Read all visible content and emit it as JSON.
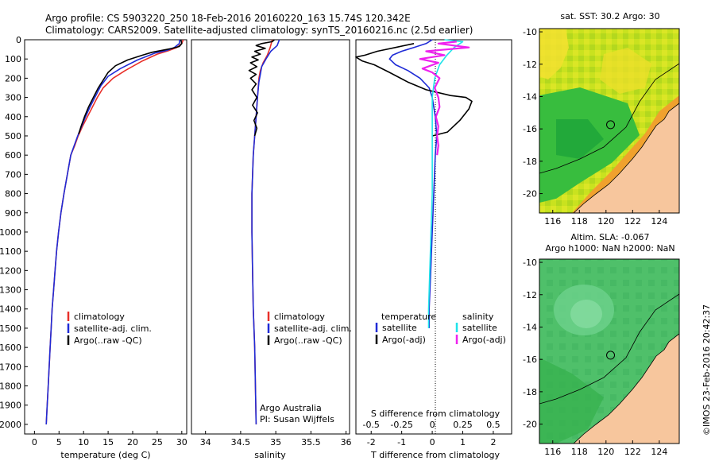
{
  "header": {
    "line1": "Argo profile: CS 5903220_250 18-Feb-2016 20160220_163 15.74S 120.342E",
    "line2": "Climatology: CARS2009. Satellite-adjusted climatology: synTS_20160216.nc (2.5d earlier)"
  },
  "colors": {
    "climatology": "#e8302a",
    "satellite": "#1f2bd6",
    "argo": "#000000",
    "sal_satellite": "#1fe3ea",
    "sal_argo": "#ee22ee",
    "land": "#f7c69d"
  },
  "depth_axis": {
    "ylim": [
      0,
      2050
    ],
    "ticks": [
      "0",
      "100",
      "200",
      "300",
      "400",
      "500",
      "600",
      "700",
      "800",
      "900",
      "1000",
      "1100",
      "1200",
      "1300",
      "1400",
      "1500",
      "1600",
      "1700",
      "1800",
      "1900",
      "2000"
    ]
  },
  "chart_data": [
    {
      "type": "line",
      "id": "temperature",
      "xlabel": "temperature (deg C)",
      "xlim": [
        -2,
        31
      ],
      "xticks": [
        "0",
        "5",
        "10",
        "15",
        "20",
        "25",
        "30"
      ],
      "legend": [
        "climatology",
        "satellite-adj. clim.",
        "Argo(..raw -QC)"
      ],
      "series": [
        {
          "name": "climatology",
          "color": "#e8302a",
          "points": [
            [
              30.3,
              0
            ],
            [
              30.0,
              20
            ],
            [
              29.0,
              40
            ],
            [
              27.5,
              55
            ],
            [
              25.0,
              75
            ],
            [
              22.0,
              110
            ],
            [
              18.5,
              160
            ],
            [
              16.0,
              200
            ],
            [
              14.0,
              250
            ],
            [
              12.8,
              300
            ],
            [
              11.8,
              350
            ],
            [
              10.8,
              400
            ],
            [
              9.8,
              450
            ],
            [
              8.9,
              500
            ],
            [
              8.2,
              550
            ],
            [
              7.4,
              600
            ],
            [
              6.7,
              700
            ],
            [
              6.0,
              800
            ],
            [
              5.4,
              900
            ],
            [
              4.9,
              1000
            ],
            [
              4.5,
              1100
            ],
            [
              4.2,
              1200
            ],
            [
              3.9,
              1300
            ],
            [
              3.6,
              1400
            ],
            [
              3.4,
              1500
            ],
            [
              3.2,
              1600
            ],
            [
              3.0,
              1700
            ],
            [
              2.8,
              1800
            ],
            [
              2.6,
              1900
            ],
            [
              2.4,
              2000
            ]
          ]
        },
        {
          "name": "satellite-adj. clim.",
          "color": "#1f2bd6",
          "points": [
            [
              29.6,
              0
            ],
            [
              29.5,
              20
            ],
            [
              28.5,
              40
            ],
            [
              27.0,
              55
            ],
            [
              24.5,
              70
            ],
            [
              21.0,
              105
            ],
            [
              17.5,
              150
            ],
            [
              15.0,
              190
            ],
            [
              13.5,
              240
            ],
            [
              12.3,
              300
            ],
            [
              11.3,
              350
            ],
            [
              10.4,
              400
            ],
            [
              9.6,
              450
            ],
            [
              8.8,
              500
            ],
            [
              8.1,
              550
            ],
            [
              7.4,
              600
            ],
            [
              6.7,
              700
            ],
            [
              6.0,
              800
            ],
            [
              5.4,
              900
            ],
            [
              4.9,
              1000
            ],
            [
              4.5,
              1100
            ],
            [
              4.2,
              1200
            ],
            [
              3.9,
              1300
            ],
            [
              3.6,
              1400
            ],
            [
              3.4,
              1500
            ],
            [
              3.2,
              1600
            ],
            [
              3.0,
              1700
            ],
            [
              2.8,
              1800
            ],
            [
              2.6,
              1900
            ],
            [
              2.4,
              2000
            ]
          ]
        },
        {
          "name": "Argo(..raw -QC)",
          "color": "#000000",
          "points": [
            [
              29.8,
              0
            ],
            [
              30.0,
              20
            ],
            [
              29.5,
              35
            ],
            [
              28.0,
              45
            ],
            [
              26.0,
              55
            ],
            [
              24.0,
              65
            ],
            [
              22.0,
              80
            ],
            [
              19.0,
              105
            ],
            [
              16.5,
              135
            ],
            [
              15.0,
              170
            ],
            [
              14.0,
              210
            ],
            [
              13.0,
              250
            ],
            [
              12.0,
              300
            ],
            [
              11.0,
              350
            ],
            [
              10.2,
              400
            ],
            [
              9.5,
              450
            ],
            [
              9.0,
              490
            ]
          ]
        }
      ]
    },
    {
      "type": "line",
      "id": "salinity",
      "xlabel": "salinity",
      "xlim": [
        33.8,
        36.05
      ],
      "xticks": [
        "34",
        "34.5",
        "35",
        "35.5",
        "36"
      ],
      "legend": [
        "climatology",
        "satellite-adj. clim.",
        "Argo(..raw -QC)"
      ],
      "annotation": [
        "Argo Australia",
        "PI: Susan Wijffels"
      ],
      "series": [
        {
          "name": "climatology",
          "color": "#e8302a",
          "points": [
            [
              34.95,
              0
            ],
            [
              34.92,
              40
            ],
            [
              34.88,
              80
            ],
            [
              34.82,
              120
            ],
            [
              34.78,
              160
            ],
            [
              34.76,
              200
            ],
            [
              34.74,
              300
            ],
            [
              34.72,
              400
            ],
            [
              34.7,
              500
            ],
            [
              34.68,
              600
            ],
            [
              34.66,
              800
            ],
            [
              34.66,
              1000
            ],
            [
              34.67,
              1200
            ],
            [
              34.68,
              1400
            ],
            [
              34.7,
              1600
            ],
            [
              34.71,
              1800
            ],
            [
              34.72,
              2000
            ]
          ]
        },
        {
          "name": "satellite-adj. clim.",
          "color": "#1f2bd6",
          "points": [
            [
              35.05,
              0
            ],
            [
              35.02,
              30
            ],
            [
              34.93,
              60
            ],
            [
              34.86,
              100
            ],
            [
              34.8,
              140
            ],
            [
              34.78,
              180
            ],
            [
              34.76,
              220
            ],
            [
              34.74,
              300
            ],
            [
              34.72,
              400
            ],
            [
              34.7,
              500
            ],
            [
              34.68,
              600
            ],
            [
              34.66,
              800
            ],
            [
              34.66,
              1000
            ],
            [
              34.67,
              1200
            ],
            [
              34.68,
              1400
            ],
            [
              34.7,
              1600
            ],
            [
              34.71,
              1800
            ],
            [
              34.72,
              2000
            ]
          ]
        },
        {
          "name": "Argo(..raw -QC)",
          "color": "#000000",
          "points": [
            [
              34.98,
              0
            ],
            [
              34.95,
              10
            ],
            [
              34.8,
              20
            ],
            [
              34.72,
              30
            ],
            [
              34.85,
              45
            ],
            [
              34.7,
              60
            ],
            [
              34.78,
              75
            ],
            [
              34.66,
              90
            ],
            [
              34.75,
              105
            ],
            [
              34.64,
              120
            ],
            [
              34.73,
              140
            ],
            [
              34.62,
              160
            ],
            [
              34.72,
              180
            ],
            [
              34.64,
              200
            ],
            [
              34.72,
              230
            ],
            [
              34.66,
              260
            ],
            [
              34.73,
              300
            ],
            [
              34.67,
              340
            ],
            [
              34.74,
              380
            ],
            [
              34.69,
              420
            ],
            [
              34.73,
              460
            ],
            [
              34.7,
              500
            ]
          ]
        }
      ]
    },
    {
      "type": "line",
      "id": "difference",
      "xlabel": "T difference from climatology",
      "xlim": [
        -2.5,
        2.6
      ],
      "xticks": [
        "-2",
        "-1",
        "0",
        "1",
        "2"
      ],
      "top_xlabel": "S difference from climatology",
      "top_xticks": [
        "-0.5",
        "-0.25",
        "0",
        "0.25",
        "0.5"
      ],
      "legend_left_title": "temperature",
      "legend_right_title": "salinity",
      "legend": [
        "satellite",
        "Argo(-adj)",
        "satellite",
        "Argo(-adj)"
      ],
      "series": [
        {
          "name": "satellite",
          "kind": "T",
          "color": "#1f2bd6",
          "points": [
            [
              0,
              0
            ],
            [
              -0.2,
              20
            ],
            [
              -0.6,
              40
            ],
            [
              -1.0,
              60
            ],
            [
              -1.3,
              80
            ],
            [
              -1.4,
              100
            ],
            [
              -1.2,
              130
            ],
            [
              -0.8,
              160
            ],
            [
              -0.6,
              180
            ],
            [
              -0.4,
              200
            ],
            [
              -0.1,
              250
            ],
            [
              0.0,
              300
            ],
            [
              0.1,
              400
            ],
            [
              0.15,
              500
            ],
            [
              0.1,
              600
            ],
            [
              0.05,
              800
            ],
            [
              0.0,
              1000
            ],
            [
              -0.05,
              1200
            ],
            [
              -0.1,
              1400
            ],
            [
              -0.1,
              1500
            ]
          ]
        },
        {
          "name": "Argo(-adj)",
          "kind": "T",
          "color": "#000000",
          "points": [
            [
              -0.6,
              20
            ],
            [
              -1.2,
              40
            ],
            [
              -1.8,
              60
            ],
            [
              -2.2,
              80
            ],
            [
              -2.5,
              90
            ],
            [
              -2.3,
              110
            ],
            [
              -1.9,
              130
            ],
            [
              -1.4,
              170
            ],
            [
              -0.8,
              220
            ],
            [
              -0.2,
              260
            ],
            [
              0.6,
              290
            ],
            [
              1.1,
              300
            ],
            [
              1.3,
              320
            ],
            [
              1.2,
              360
            ],
            [
              0.9,
              420
            ],
            [
              0.5,
              480
            ],
            [
              0.0,
              500
            ]
          ]
        },
        {
          "name": "satellite",
          "kind": "S",
          "color": "#1fe3ea",
          "points": [
            [
              0.1,
              0
            ],
            [
              0.25,
              10
            ],
            [
              0.18,
              40
            ],
            [
              0.12,
              80
            ],
            [
              0.06,
              130
            ],
            [
              0.02,
              200
            ],
            [
              0.0,
              300
            ],
            [
              0.0,
              400
            ],
            [
              0.0,
              600
            ],
            [
              0.0,
              800
            ],
            [
              -0.01,
              1000
            ],
            [
              -0.02,
              1200
            ],
            [
              -0.03,
              1400
            ],
            [
              -0.03,
              1500
            ]
          ]
        },
        {
          "name": "Argo(-adj)",
          "kind": "S",
          "color": "#ee22ee",
          "points": [
            [
              0.2,
              10
            ],
            [
              0.05,
              20
            ],
            [
              0.3,
              40
            ],
            [
              -0.05,
              60
            ],
            [
              0.1,
              80
            ],
            [
              -0.1,
              100
            ],
            [
              0.05,
              120
            ],
            [
              -0.08,
              150
            ],
            [
              0.0,
              170
            ],
            [
              0.06,
              200
            ],
            [
              0.02,
              250
            ],
            [
              0.05,
              300
            ],
            [
              0.06,
              350
            ],
            [
              0.03,
              400
            ],
            [
              0.05,
              450
            ],
            [
              0.04,
              500
            ],
            [
              0.05,
              550
            ],
            [
              0.04,
              600
            ]
          ]
        }
      ]
    }
  ],
  "maps": [
    {
      "id": "sst-map",
      "title": "sat. SST: 30.2 Argo: 30",
      "xticks": [
        "116",
        "118",
        "120",
        "122",
        "124"
      ],
      "yticks": [
        "-10",
        "-12",
        "-14",
        "-16",
        "-18",
        "-20"
      ],
      "lon_range": [
        115,
        125.5
      ],
      "lat_range": [
        -21.2,
        -9.8
      ],
      "argo_position": [
        120.342,
        -15.74
      ]
    },
    {
      "id": "sla-map",
      "title_line1": "Altim. SLA: -0.067",
      "title_line2": "Argo h1000: NaN h2000: NaN",
      "xticks": [
        "116",
        "118",
        "120",
        "122",
        "124"
      ],
      "yticks": [
        "-10",
        "-12",
        "-14",
        "-16",
        "-18",
        "-20"
      ],
      "lon_range": [
        115,
        125.5
      ],
      "lat_range": [
        -21.2,
        -9.8
      ],
      "argo_position": [
        120.342,
        -15.74
      ]
    }
  ],
  "credit": "©IMOS 23-Feb-2016 20:42:37"
}
